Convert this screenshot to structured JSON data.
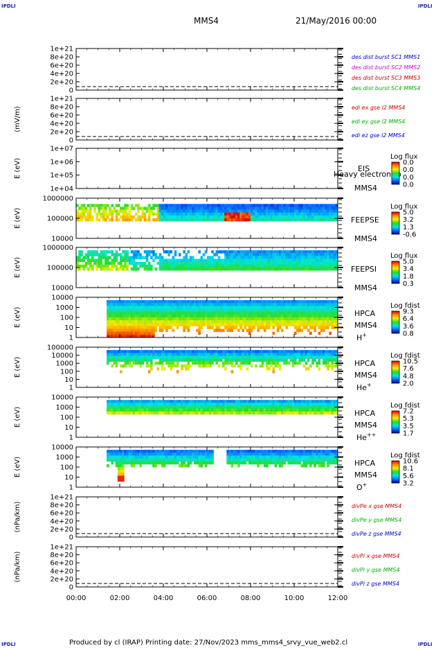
{
  "header": {
    "spacecraft": "MMS4",
    "datetime": "21/May/2016 00:00",
    "corner_label": "IPDLI"
  },
  "footer": {
    "text": "Produced by cl (IRAP)   Printing date: 27/Nov/2023   mms_mms4_srvy_vue_web2.cl"
  },
  "colors": {
    "mms1": "#0000c8",
    "mms2": "#d000d0",
    "mms3": "#d00000",
    "mms4": "#00b000",
    "red": "#e00000",
    "green": "#00c000",
    "blue": "#0000d0"
  },
  "chart_data": {
    "type": "heatmap",
    "x_tick_labels": [
      "00:00",
      "02:00",
      "04:00",
      "06:00",
      "08:00",
      "10:00",
      "12:00"
    ],
    "panels": [
      {
        "id": "dist",
        "type": "line",
        "ylabel": "",
        "ytick_labels": [
          "1e+21",
          "8e+20",
          "6e+20",
          "4e+20",
          "2e+20",
          "0"
        ],
        "legend": [
          {
            "text": "des dist burst SC1 MMS1",
            "color": "#0000c8"
          },
          {
            "text": "des dist burst SC2 MMS2",
            "color": "#d000d0"
          },
          {
            "text": "des dist burst SC3 MMS3",
            "color": "#d00000"
          },
          {
            "text": "des dist burst SC4 MMS4",
            "color": "#00b000"
          }
        ]
      },
      {
        "id": "edi",
        "type": "line",
        "ylabel": "(mV/m)",
        "ytick_labels": [
          "1e+21",
          "8e+20",
          "6e+20",
          "4e+20",
          "2e+20",
          "0"
        ],
        "legend": [
          {
            "text": "edi ex gse l2 MMS4",
            "color": "#d00000"
          },
          {
            "text": "edi ey gse l2 MMS4",
            "color": "#00b000"
          },
          {
            "text": "edi ez gse l2 MMS4",
            "color": "#0000c8"
          }
        ]
      },
      {
        "id": "eis",
        "type": "heatmap",
        "ylabel": "E (eV)",
        "ytick_labels": [
          "1e+07",
          "1e+06",
          "1e+05",
          "1e+04"
        ],
        "labels": [
          "EIS",
          "Heavy electron to",
          "MMS4"
        ],
        "cbar_title": "Log flux",
        "cbar_values": [
          "0.0",
          "0.0",
          "0.0",
          "0.0"
        ]
      },
      {
        "id": "feepse",
        "type": "heatmap",
        "ylabel": "E (eV)",
        "ytick_labels": [
          "1000000",
          "100000",
          "10000"
        ],
        "labels": [
          "FEEPSE",
          "MMS4"
        ],
        "cbar_title": "Log flux",
        "cbar_values": [
          "5.0",
          "3.2",
          "1.3",
          "-0.6"
        ]
      },
      {
        "id": "feepsi",
        "type": "heatmap",
        "ylabel": "E (eV)",
        "ytick_labels": [
          "1000000",
          "100000",
          "10000"
        ],
        "labels": [
          "FEEPSI",
          "MMS4"
        ],
        "cbar_title": "Log flux",
        "cbar_values": [
          "5.0",
          "3.4",
          "1.8",
          "0.3"
        ]
      },
      {
        "id": "hpca_h",
        "type": "heatmap",
        "ylabel": "E (eV)",
        "ytick_labels": [
          "10000",
          "1000",
          "100",
          "10",
          "1"
        ],
        "labels": [
          "HPCA",
          "MMS4",
          "H",
          "+"
        ],
        "cbar_title": "Log fdist",
        "cbar_values": [
          "9.3",
          "6.4",
          "3.6",
          "0.8"
        ]
      },
      {
        "id": "hpca_he",
        "type": "heatmap",
        "ylabel": "E (eV)",
        "ytick_labels": [
          "100000",
          "10000",
          "1000",
          "100",
          "10",
          "1"
        ],
        "labels": [
          "HPCA",
          "MMS4",
          "He",
          "+"
        ],
        "cbar_title": "Log fdist",
        "cbar_values": [
          "10.5",
          "7.6",
          "4.8",
          "2.0"
        ]
      },
      {
        "id": "hpca_hepp",
        "type": "heatmap",
        "ylabel": "E (eV)",
        "ytick_labels": [
          "10000",
          "1000",
          "100",
          "10",
          "1"
        ],
        "labels": [
          "HPCA",
          "MMS4",
          "He",
          "++"
        ],
        "cbar_title": "Log fdist",
        "cbar_values": [
          "7.2",
          "5.3",
          "3.5",
          "1.7"
        ]
      },
      {
        "id": "hpca_o",
        "type": "heatmap",
        "ylabel": "E (eV)",
        "ytick_labels": [
          "10000",
          "1000",
          "100",
          "10",
          "1"
        ],
        "labels": [
          "HPCA",
          "MMS4",
          "O",
          "+"
        ],
        "cbar_title": "Log fdist",
        "cbar_values": [
          "10.6",
          "8.1",
          "5.6",
          "3.2"
        ]
      },
      {
        "id": "divpe",
        "type": "line",
        "ylabel": "(nPa/km)",
        "ytick_labels": [
          "1e+21",
          "8e+20",
          "6e+20",
          "4e+20",
          "2e+20",
          "0"
        ],
        "legend": [
          {
            "text": "divPe x gse MMS4",
            "color": "#d00000"
          },
          {
            "text": "divPe y gse MMS4",
            "color": "#00b000"
          },
          {
            "text": "divPe z gse MMS4",
            "color": "#0000c8"
          }
        ]
      },
      {
        "id": "divpi",
        "type": "line",
        "ylabel": "(nPa/km)",
        "ytick_labels": [
          "1e+21",
          "8e+20",
          "6e+20",
          "4e+20",
          "2e+20",
          "0"
        ],
        "legend": [
          {
            "text": "divPi x gse MMS4",
            "color": "#d00000"
          },
          {
            "text": "divPi y gse MMS4",
            "color": "#00b000"
          },
          {
            "text": "divPi z gse MMS4",
            "color": "#0000c8"
          }
        ]
      }
    ]
  }
}
